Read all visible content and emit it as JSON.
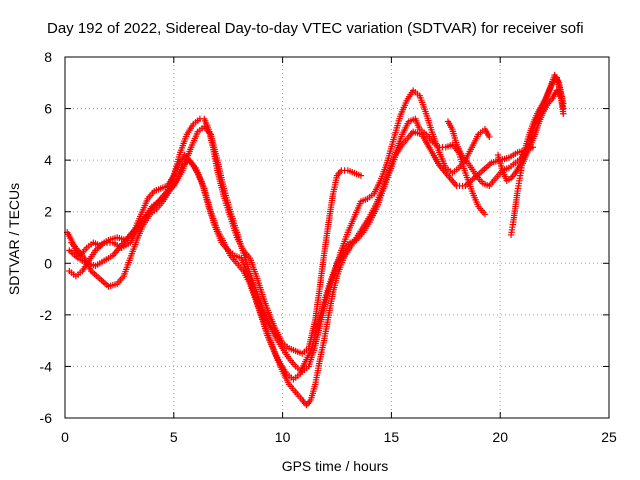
{
  "chart_data": {
    "type": "scatter",
    "title": "Day 192 of 2022, Sidereal Day-to-day VTEC variation (SDTVAR) for receiver sofi",
    "xlabel": "GPS time / hours",
    "ylabel": "SDTVAR / TECUs",
    "xlim": [
      0,
      25
    ],
    "ylim": [
      -6,
      8
    ],
    "xticks": [
      0,
      5,
      10,
      15,
      20,
      25
    ],
    "yticks": [
      -6,
      -4,
      -2,
      0,
      2,
      4,
      6,
      8
    ],
    "grid": true,
    "marker": "plus",
    "color": "#ff0000",
    "series": [
      {
        "points": [
          [
            0.1,
            1.2
          ],
          [
            0.3,
            0.9
          ],
          [
            0.5,
            0.5
          ],
          [
            0.7,
            0.3
          ],
          [
            1.0,
            0.6
          ],
          [
            1.3,
            0.8
          ],
          [
            1.6,
            0.7
          ],
          [
            2.0,
            0.9
          ],
          [
            2.4,
            1.0
          ],
          [
            2.8,
            0.9
          ],
          [
            3.2,
            1.3
          ],
          [
            3.5,
            1.9
          ],
          [
            3.8,
            2.5
          ],
          [
            4.1,
            2.8
          ],
          [
            4.4,
            2.9
          ],
          [
            4.7,
            3.0
          ],
          [
            5.0,
            3.4
          ],
          [
            5.3,
            4.3
          ],
          [
            5.6,
            5.0
          ],
          [
            5.9,
            5.4
          ],
          [
            6.2,
            5.6
          ],
          [
            6.4,
            5.6
          ],
          [
            6.6,
            5.2
          ],
          [
            6.8,
            4.5
          ],
          [
            7.0,
            3.6
          ],
          [
            7.3,
            2.6
          ],
          [
            7.6,
            1.8
          ],
          [
            7.9,
            1.0
          ],
          [
            8.2,
            0.5
          ],
          [
            8.5,
            0.2
          ],
          [
            8.8,
            -0.5
          ],
          [
            9.1,
            -1.3
          ],
          [
            9.4,
            -2.0
          ],
          [
            9.7,
            -2.6
          ],
          [
            10.0,
            -3.1
          ],
          [
            10.3,
            -3.3
          ],
          [
            10.6,
            -3.4
          ],
          [
            10.9,
            -3.5
          ],
          [
            11.2,
            -3.3
          ],
          [
            11.5,
            -2.2
          ],
          [
            11.7,
            -1.0
          ],
          [
            11.9,
            0.3
          ],
          [
            12.1,
            1.5
          ],
          [
            12.3,
            2.6
          ],
          [
            12.5,
            3.4
          ],
          [
            12.7,
            3.6
          ],
          [
            13.0,
            3.6
          ],
          [
            13.3,
            3.5
          ],
          [
            13.6,
            3.4
          ]
        ]
      },
      {
        "points": [
          [
            0.2,
            -0.3
          ],
          [
            0.5,
            -0.5
          ],
          [
            0.8,
            -0.3
          ],
          [
            1.1,
            0.1
          ],
          [
            1.4,
            0.5
          ],
          [
            1.8,
            0.8
          ],
          [
            2.2,
            0.8
          ],
          [
            2.6,
            0.6
          ],
          [
            3.0,
            0.8
          ],
          [
            3.3,
            1.3
          ],
          [
            3.7,
            1.8
          ],
          [
            4.0,
            2.2
          ],
          [
            4.3,
            2.4
          ],
          [
            4.6,
            2.6
          ],
          [
            4.9,
            3.2
          ],
          [
            5.2,
            3.8
          ],
          [
            5.5,
            4.2
          ],
          [
            5.8,
            3.9
          ],
          [
            6.1,
            3.5
          ],
          [
            6.4,
            2.9
          ],
          [
            6.7,
            2.0
          ],
          [
            7.0,
            1.3
          ],
          [
            7.3,
            0.8
          ],
          [
            7.6,
            0.3
          ],
          [
            7.9,
            0.0
          ],
          [
            8.2,
            -0.3
          ],
          [
            8.5,
            -0.8
          ],
          [
            8.8,
            -1.5
          ],
          [
            9.1,
            -2.2
          ],
          [
            9.4,
            -2.9
          ],
          [
            9.7,
            -3.6
          ],
          [
            10.0,
            -4.2
          ],
          [
            10.3,
            -4.7
          ],
          [
            10.6,
            -5.0
          ],
          [
            10.9,
            -5.3
          ],
          [
            11.1,
            -5.5
          ],
          [
            11.3,
            -5.3
          ],
          [
            11.5,
            -4.7
          ],
          [
            11.7,
            -3.8
          ],
          [
            11.9,
            -3.0
          ],
          [
            12.1,
            -2.1
          ],
          [
            12.3,
            -1.2
          ],
          [
            12.5,
            -0.5
          ],
          [
            12.8,
            0.2
          ],
          [
            13.1,
            0.6
          ],
          [
            13.4,
            1.0
          ],
          [
            13.7,
            1.4
          ],
          [
            14.0,
            1.8
          ],
          [
            14.3,
            2.3
          ],
          [
            14.6,
            2.9
          ],
          [
            14.9,
            3.6
          ],
          [
            15.2,
            4.3
          ],
          [
            15.5,
            5.0
          ],
          [
            15.8,
            5.5
          ],
          [
            16.1,
            5.6
          ],
          [
            16.3,
            5.2
          ],
          [
            16.6,
            5.0
          ],
          [
            16.9,
            4.7
          ],
          [
            17.2,
            4.5
          ],
          [
            17.5,
            4.5
          ],
          [
            17.8,
            4.6
          ],
          [
            18.1,
            4.3
          ],
          [
            18.4,
            3.5
          ],
          [
            18.7,
            2.8
          ],
          [
            19.0,
            2.2
          ],
          [
            19.3,
            1.9
          ]
        ]
      },
      {
        "points": [
          [
            0.3,
            0.8
          ],
          [
            0.6,
            0.5
          ],
          [
            0.9,
            0.2
          ],
          [
            1.2,
            -0.3
          ],
          [
            1.6,
            -0.6
          ],
          [
            2.0,
            -0.9
          ],
          [
            2.4,
            -0.8
          ],
          [
            2.7,
            -0.5
          ],
          [
            3.0,
            0.2
          ],
          [
            3.3,
            0.9
          ],
          [
            3.6,
            1.5
          ],
          [
            3.9,
            1.9
          ],
          [
            4.2,
            2.1
          ],
          [
            4.5,
            2.4
          ],
          [
            4.8,
            2.8
          ],
          [
            5.1,
            3.2
          ],
          [
            5.4,
            3.8
          ],
          [
            5.7,
            4.0
          ],
          [
            6.0,
            3.7
          ],
          [
            6.3,
            3.1
          ],
          [
            6.6,
            2.2
          ],
          [
            6.9,
            1.4
          ],
          [
            7.2,
            0.8
          ],
          [
            7.5,
            0.5
          ],
          [
            7.8,
            0.3
          ],
          [
            8.1,
            0.2
          ],
          [
            8.4,
            -0.4
          ],
          [
            8.7,
            -1.2
          ],
          [
            9.0,
            -2.0
          ],
          [
            9.3,
            -2.8
          ],
          [
            9.6,
            -3.4
          ],
          [
            9.9,
            -3.9
          ],
          [
            10.2,
            -4.3
          ],
          [
            10.5,
            -4.5
          ],
          [
            10.8,
            -4.3
          ],
          [
            11.0,
            -3.9
          ],
          [
            11.3,
            -3.4
          ],
          [
            11.6,
            -2.5
          ],
          [
            11.9,
            -1.5
          ],
          [
            12.2,
            -0.7
          ],
          [
            12.5,
            0.0
          ],
          [
            12.8,
            0.5
          ],
          [
            13.1,
            0.8
          ],
          [
            13.4,
            0.9
          ],
          [
            13.7,
            1.2
          ],
          [
            14.0,
            1.6
          ],
          [
            14.3,
            2.1
          ],
          [
            14.6,
            2.8
          ],
          [
            14.9,
            3.5
          ],
          [
            15.2,
            4.2
          ],
          [
            15.5,
            4.6
          ],
          [
            15.8,
            4.9
          ],
          [
            16.0,
            5.1
          ],
          [
            16.4,
            5.0
          ],
          [
            16.8,
            4.4
          ],
          [
            17.2,
            3.8
          ],
          [
            17.6,
            3.4
          ],
          [
            18.0,
            3.0
          ],
          [
            18.4,
            3.0
          ],
          [
            18.8,
            3.3
          ],
          [
            19.2,
            3.6
          ],
          [
            19.6,
            3.9
          ],
          [
            20.0,
            4.0
          ],
          [
            20.4,
            4.1
          ],
          [
            20.8,
            4.3
          ],
          [
            21.2,
            4.4
          ],
          [
            21.5,
            4.5
          ]
        ]
      },
      {
        "points": [
          [
            0.2,
            0.5
          ],
          [
            0.6,
            0.2
          ],
          [
            1.0,
            0.0
          ],
          [
            1.4,
            -0.1
          ],
          [
            1.8,
            0.1
          ],
          [
            2.2,
            0.3
          ],
          [
            2.6,
            0.7
          ],
          [
            3.0,
            1.1
          ],
          [
            3.4,
            1.5
          ],
          [
            3.8,
            1.9
          ],
          [
            4.2,
            2.3
          ],
          [
            4.6,
            2.7
          ],
          [
            5.0,
            3.0
          ],
          [
            5.4,
            3.6
          ],
          [
            5.8,
            4.5
          ],
          [
            6.1,
            5.1
          ],
          [
            6.4,
            5.3
          ],
          [
            6.7,
            5.0
          ],
          [
            7.0,
            4.0
          ],
          [
            7.3,
            2.9
          ],
          [
            7.6,
            2.0
          ],
          [
            7.9,
            1.2
          ],
          [
            8.2,
            0.4
          ],
          [
            8.5,
            -0.4
          ],
          [
            8.8,
            -1.1
          ],
          [
            9.1,
            -1.8
          ],
          [
            9.4,
            -2.4
          ],
          [
            9.7,
            -2.9
          ],
          [
            10.0,
            -3.3
          ],
          [
            10.3,
            -3.7
          ],
          [
            10.6,
            -4.0
          ],
          [
            10.9,
            -4.2
          ],
          [
            11.2,
            -4.0
          ],
          [
            11.5,
            -3.2
          ],
          [
            11.8,
            -2.1
          ],
          [
            12.1,
            -1.1
          ],
          [
            12.4,
            -0.3
          ],
          [
            12.7,
            0.5
          ],
          [
            13.0,
            1.2
          ],
          [
            13.3,
            1.8
          ],
          [
            13.6,
            2.4
          ],
          [
            13.9,
            2.5
          ],
          [
            14.2,
            2.7
          ],
          [
            14.5,
            3.2
          ],
          [
            14.8,
            3.9
          ],
          [
            15.1,
            4.8
          ],
          [
            15.4,
            5.7
          ],
          [
            15.7,
            6.3
          ],
          [
            16.0,
            6.7
          ],
          [
            16.3,
            6.5
          ],
          [
            16.6,
            5.8
          ],
          [
            16.9,
            5.0
          ],
          [
            17.2,
            4.3
          ],
          [
            17.5,
            3.7
          ],
          [
            17.8,
            3.5
          ],
          [
            18.1,
            3.7
          ],
          [
            18.4,
            4.0
          ],
          [
            18.7,
            4.5
          ],
          [
            19.0,
            5.0
          ],
          [
            19.3,
            5.2
          ],
          [
            19.5,
            4.9
          ]
        ]
      },
      {
        "points": [
          [
            17.6,
            5.5
          ],
          [
            17.8,
            5.2
          ],
          [
            18.0,
            4.6
          ],
          [
            18.3,
            4.1
          ],
          [
            18.6,
            3.8
          ],
          [
            18.9,
            3.4
          ],
          [
            19.2,
            3.1
          ],
          [
            19.5,
            3.0
          ],
          [
            19.8,
            3.3
          ],
          [
            20.1,
            3.6
          ],
          [
            20.4,
            3.7
          ],
          [
            20.7,
            3.9
          ],
          [
            21.0,
            4.1
          ],
          [
            21.2,
            4.4
          ],
          [
            21.4,
            4.9
          ],
          [
            21.6,
            5.4
          ],
          [
            21.8,
            5.8
          ],
          [
            22.0,
            6.2
          ],
          [
            22.2,
            6.6
          ],
          [
            22.4,
            7.0
          ],
          [
            22.6,
            7.2
          ],
          [
            22.8,
            6.5
          ],
          [
            22.9,
            6.0
          ]
        ]
      },
      {
        "points": [
          [
            20.5,
            1.1
          ],
          [
            20.6,
            1.6
          ],
          [
            20.7,
            2.2
          ],
          [
            20.8,
            2.8
          ],
          [
            20.9,
            3.3
          ],
          [
            21.0,
            3.8
          ],
          [
            21.2,
            4.2
          ],
          [
            21.4,
            4.6
          ],
          [
            21.6,
            5.0
          ],
          [
            21.8,
            5.5
          ],
          [
            22.0,
            5.9
          ],
          [
            22.2,
            6.2
          ],
          [
            22.4,
            6.4
          ],
          [
            22.6,
            6.7
          ],
          [
            22.8,
            6.4
          ],
          [
            22.9,
            5.8
          ]
        ]
      },
      {
        "points": [
          [
            19.9,
            4.2
          ],
          [
            20.1,
            3.6
          ],
          [
            20.3,
            3.2
          ],
          [
            20.5,
            3.3
          ],
          [
            20.7,
            3.5
          ],
          [
            20.9,
            3.8
          ],
          [
            21.1,
            4.3
          ],
          [
            21.3,
            4.9
          ],
          [
            21.5,
            5.4
          ],
          [
            21.7,
            5.8
          ],
          [
            21.9,
            6.1
          ],
          [
            22.1,
            6.4
          ],
          [
            22.3,
            6.8
          ],
          [
            22.5,
            7.3
          ],
          [
            22.7,
            7.0
          ],
          [
            22.9,
            6.2
          ]
        ]
      }
    ]
  }
}
